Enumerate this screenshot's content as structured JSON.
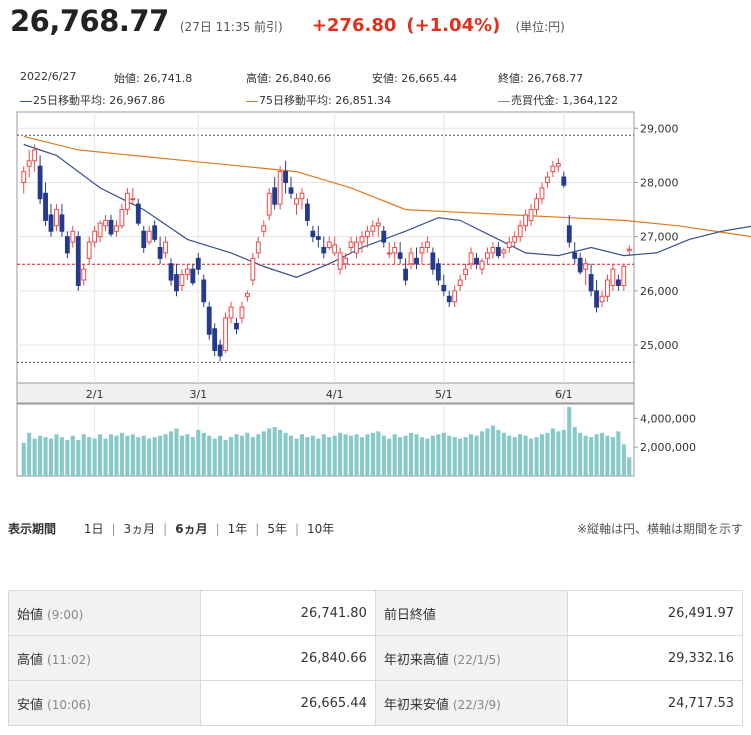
{
  "header": {
    "price": "26,768.77",
    "meta": "(27日 11:35 前引)",
    "change": "+276.80",
    "change_pct": "(+1.04%)",
    "unit": "(単位:円)"
  },
  "info": {
    "date": "2022/6/27",
    "open": "始値: 26,741.8",
    "high": "高値: 26,840.66",
    "low": "安値: 26,665.44",
    "close": "終値: 26,768.77",
    "ma25": "25日移動平均: 26,967.86",
    "ma75": "75日移動平均: 26,851.34",
    "turnover": "売買代金: 1,364,122"
  },
  "colors": {
    "up": "#e84a4a",
    "down": "#243a8a",
    "ma25": "#36508a",
    "ma75": "#e07a1f",
    "volume": "#86c9c9",
    "ref": "#cc2222"
  },
  "chart_data": {
    "type": "candlestick",
    "x_labels": [
      "2/1",
      "3/1",
      "4/1",
      "5/1",
      "6/1"
    ],
    "y_ticks": [
      "29,000",
      "28,000",
      "27,000",
      "26,000",
      "25,000"
    ],
    "ylim": [
      24300,
      29300
    ],
    "reference_line": 26491.97,
    "volume_ticks": [
      "4,000,000",
      "2,000,000"
    ],
    "volume_ylim": [
      0,
      5000000
    ],
    "ohlc": [
      [
        28000,
        28300,
        27800,
        28200
      ],
      [
        28300,
        28600,
        28100,
        28400
      ],
      [
        28400,
        28700,
        28200,
        28600
      ],
      [
        28300,
        28500,
        27600,
        27700
      ],
      [
        27800,
        28000,
        27200,
        27300
      ],
      [
        27400,
        27600,
        27000,
        27100
      ],
      [
        27200,
        27600,
        27100,
        27500
      ],
      [
        27400,
        27600,
        27000,
        27100
      ],
      [
        27000,
        27100,
        26600,
        26700
      ],
      [
        26900,
        27200,
        26800,
        27100
      ],
      [
        27000,
        27100,
        26000,
        26100
      ],
      [
        26200,
        26500,
        26100,
        26400
      ],
      [
        26600,
        27000,
        26500,
        26900
      ],
      [
        26900,
        27200,
        26800,
        27100
      ],
      [
        27000,
        27300,
        26900,
        27250
      ],
      [
        27200,
        27400,
        27100,
        27300
      ],
      [
        27300,
        27400,
        27000,
        27050
      ],
      [
        27100,
        27300,
        27000,
        27200
      ],
      [
        27200,
        27600,
        27150,
        27500
      ],
      [
        27500,
        27900,
        27400,
        27800
      ],
      [
        27700,
        27900,
        27600,
        27700
      ],
      [
        27600,
        27700,
        27200,
        27250
      ],
      [
        27100,
        27200,
        26700,
        26800
      ],
      [
        26900,
        27200,
        26850,
        27100
      ],
      [
        27200,
        27300,
        26900,
        26950
      ],
      [
        26800,
        27000,
        26500,
        26600
      ],
      [
        26700,
        27000,
        26600,
        26900
      ],
      [
        26500,
        26600,
        26100,
        26200
      ],
      [
        26300,
        26500,
        25900,
        26000
      ],
      [
        26100,
        26400,
        26000,
        26300
      ],
      [
        26300,
        26500,
        26200,
        26400
      ],
      [
        26400,
        26500,
        26100,
        26150
      ],
      [
        26600,
        26700,
        26300,
        26400
      ],
      [
        26200,
        26300,
        25700,
        25800
      ],
      [
        25700,
        25800,
        25100,
        25200
      ],
      [
        25300,
        25400,
        24800,
        24900
      ],
      [
        25000,
        25100,
        24700,
        24800
      ],
      [
        24900,
        25600,
        24850,
        25500
      ],
      [
        25500,
        25800,
        25400,
        25700
      ],
      [
        25400,
        25500,
        25200,
        25300
      ],
      [
        25500,
        25800,
        25400,
        25700
      ],
      [
        25900,
        26000,
        25800,
        25950
      ],
      [
        26200,
        26700,
        26100,
        26600
      ],
      [
        26700,
        27000,
        26600,
        26900
      ],
      [
        27100,
        27300,
        27000,
        27200
      ],
      [
        27400,
        27900,
        27300,
        27800
      ],
      [
        27900,
        28100,
        27500,
        27600
      ],
      [
        27600,
        28300,
        27500,
        28200
      ],
      [
        28200,
        28400,
        27800,
        28000
      ],
      [
        27900,
        28100,
        27700,
        27800
      ],
      [
        27600,
        27800,
        27400,
        27700
      ],
      [
        27700,
        27900,
        27500,
        27800
      ],
      [
        27600,
        27700,
        27200,
        27300
      ],
      [
        27100,
        27200,
        26900,
        27000
      ],
      [
        27000,
        27200,
        26800,
        26950
      ],
      [
        26800,
        27000,
        26600,
        26700
      ],
      [
        26800,
        27000,
        26750,
        26900
      ],
      [
        26700,
        27000,
        26650,
        26850
      ],
      [
        26400,
        26800,
        26300,
        26700
      ],
      [
        26500,
        26700,
        26400,
        26600
      ],
      [
        26800,
        27000,
        26700,
        26900
      ],
      [
        26700,
        27000,
        26600,
        26900
      ],
      [
        26900,
        27100,
        26700,
        27000
      ],
      [
        27000,
        27200,
        26800,
        27100
      ],
      [
        27100,
        27300,
        27000,
        27200
      ],
      [
        27200,
        27350,
        27000,
        27250
      ],
      [
        27100,
        27200,
        26800,
        26900
      ],
      [
        26700,
        26900,
        26600,
        26700
      ],
      [
        26700,
        26900,
        26500,
        26800
      ],
      [
        26700,
        26900,
        26500,
        26600
      ],
      [
        26400,
        26600,
        26100,
        26200
      ],
      [
        26500,
        26800,
        26400,
        26700
      ],
      [
        26600,
        26800,
        26400,
        26500
      ],
      [
        26700,
        26900,
        26500,
        26800
      ],
      [
        26800,
        27000,
        26700,
        26900
      ],
      [
        26700,
        26800,
        26300,
        26400
      ],
      [
        26500,
        26600,
        26100,
        26200
      ],
      [
        26100,
        26300,
        25900,
        26000
      ],
      [
        25900,
        26000,
        25700,
        25800
      ],
      [
        25800,
        26100,
        25700,
        26000
      ],
      [
        26100,
        26300,
        26000,
        26200
      ],
      [
        26300,
        26500,
        26200,
        26400
      ],
      [
        26500,
        26800,
        26400,
        26700
      ],
      [
        26600,
        26700,
        26400,
        26500
      ],
      [
        26400,
        26600,
        26300,
        26550
      ],
      [
        26600,
        26800,
        26500,
        26700
      ],
      [
        26700,
        26900,
        26600,
        26800
      ],
      [
        26800,
        26900,
        26600,
        26650
      ],
      [
        26700,
        26800,
        26600,
        26750
      ],
      [
        26800,
        27000,
        26700,
        26900
      ],
      [
        26900,
        27100,
        26800,
        27000
      ],
      [
        27000,
        27300,
        26900,
        27200
      ],
      [
        27200,
        27500,
        27100,
        27400
      ],
      [
        27300,
        27600,
        27200,
        27500
      ],
      [
        27500,
        27800,
        27400,
        27700
      ],
      [
        27700,
        28000,
        27600,
        27900
      ],
      [
        28000,
        28200,
        27900,
        28100
      ],
      [
        28200,
        28400,
        28100,
        28300
      ],
      [
        28300,
        28450,
        28200,
        28350
      ],
      [
        28100,
        28200,
        27900,
        27950
      ],
      [
        27200,
        27400,
        26800,
        26900
      ],
      [
        26700,
        26900,
        26500,
        26600
      ],
      [
        26600,
        26700,
        26300,
        26350
      ],
      [
        26400,
        26600,
        26100,
        26500
      ],
      [
        26300,
        26500,
        25900,
        26000
      ],
      [
        26000,
        26200,
        25600,
        25700
      ],
      [
        25800,
        26000,
        25700,
        25900
      ],
      [
        25900,
        26300,
        25800,
        26200
      ],
      [
        26100,
        26500,
        26000,
        26400
      ],
      [
        26200,
        26300,
        26000,
        26100
      ],
      [
        26100,
        26500,
        26000,
        26450
      ],
      [
        26741.8,
        26840.66,
        26665.44,
        26768.77
      ]
    ],
    "ma25": [
      [
        0,
        28700
      ],
      [
        6,
        28500
      ],
      [
        14,
        27900
      ],
      [
        22,
        27500
      ],
      [
        30,
        26950
      ],
      [
        38,
        26700
      ],
      [
        44,
        26450
      ],
      [
        50,
        26250
      ],
      [
        56,
        26500
      ],
      [
        62,
        26800
      ],
      [
        70,
        27100
      ],
      [
        76,
        27350
      ],
      [
        80,
        27300
      ],
      [
        86,
        27000
      ],
      [
        92,
        26700
      ],
      [
        98,
        26650
      ],
      [
        104,
        26800
      ],
      [
        110,
        26650
      ],
      [
        116,
        26700
      ],
      [
        122,
        26950
      ],
      [
        128,
        27100
      ],
      [
        134,
        27200
      ],
      [
        140,
        27150
      ],
      [
        146,
        26900
      ],
      [
        152,
        26850
      ],
      [
        158,
        26950
      ],
      [
        164,
        27000
      ]
    ],
    "ma75": [
      [
        0,
        28850
      ],
      [
        10,
        28600
      ],
      [
        20,
        28500
      ],
      [
        30,
        28400
      ],
      [
        40,
        28300
      ],
      [
        50,
        28200
      ],
      [
        60,
        27900
      ],
      [
        70,
        27500
      ],
      [
        80,
        27450
      ],
      [
        90,
        27400
      ],
      [
        100,
        27350
      ],
      [
        110,
        27300
      ],
      [
        120,
        27200
      ],
      [
        130,
        27050
      ],
      [
        140,
        26900
      ],
      [
        150,
        26850
      ],
      [
        164,
        26860
      ]
    ],
    "volume": [
      2300000,
      3000000,
      2600000,
      2800000,
      2700000,
      2600000,
      2900000,
      2700000,
      2500000,
      2800000,
      2500000,
      2900000,
      2700000,
      2600000,
      2900000,
      2600000,
      2900000,
      2800000,
      3000000,
      2800000,
      2900000,
      2700000,
      2800000,
      2600000,
      2700000,
      2800000,
      2900000,
      3100000,
      3300000,
      2800000,
      2900000,
      2700000,
      3200000,
      3000000,
      2800000,
      2600000,
      2800000,
      2500000,
      2700000,
      2900000,
      2800000,
      3000000,
      2700000,
      2900000,
      3100000,
      3300000,
      3400000,
      3200000,
      3000000,
      2800000,
      2600000,
      2900000,
      2700000,
      2800000,
      2600000,
      2900000,
      2700000,
      2800000,
      3000000,
      2900000,
      2800000,
      2900000,
      2700000,
      2900000,
      3000000,
      3100000,
      2800000,
      2600000,
      2900000,
      2700000,
      2800000,
      3000000,
      2900000,
      2700000,
      2600000,
      2800000,
      2900000,
      3000000,
      2800000,
      2700000,
      2600000,
      2700000,
      2900000,
      2800000,
      3100000,
      3300000,
      3500000,
      3200000,
      3000000,
      2800000,
      2700000,
      2900000,
      2800000,
      2600000,
      2700000,
      2900000,
      3000000,
      3300000,
      3100000,
      3200000,
      4800000,
      3400000,
      3000000,
      2800000,
      2700000,
      2900000,
      3000000,
      2800000,
      2700000,
      3100000,
      2200000,
      1300000
    ]
  },
  "period": {
    "title": "表示期間",
    "options": [
      "1日",
      "3ヵ月",
      "6ヵ月",
      "1年",
      "5年",
      "10年"
    ],
    "active": "6ヵ月"
  },
  "note": "※縦軸は円、横軸は期間を示す",
  "stats": {
    "open_label": "始値",
    "open_time": "(9:00)",
    "open_value": "26,741.80",
    "prev_close_label": "前日終値",
    "prev_close_value": "26,491.97",
    "high_label": "高値",
    "high_time": "(11:02)",
    "high_value": "26,840.66",
    "ytd_high_label": "年初来高値",
    "ytd_high_date": "(22/1/5)",
    "ytd_high_value": "29,332.16",
    "low_label": "安値",
    "low_time": "(10:06)",
    "low_value": "26,665.44",
    "ytd_low_label": "年初来安値",
    "ytd_low_date": "(22/3/9)",
    "ytd_low_value": "24,717.53"
  }
}
